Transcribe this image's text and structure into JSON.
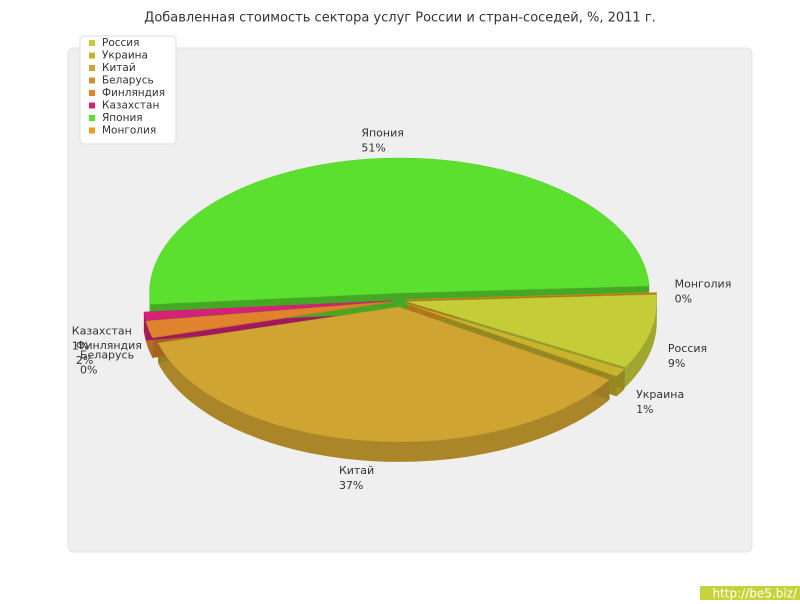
{
  "chart_data": {
    "type": "pie3d",
    "title": "Добавленная стоимость сектора услуг России и стран-соседей, %, 2011 г.",
    "categories": [
      "Россия",
      "Украина",
      "Китай",
      "Беларусь",
      "Финляндия",
      "Казахстан",
      "Япония",
      "Монголия"
    ],
    "values": [
      9,
      1,
      37,
      0,
      2,
      1,
      51,
      0
    ],
    "value_labels": [
      "9%",
      "1%",
      "37%",
      "0%",
      "2%",
      "1%",
      "51%",
      "0%"
    ],
    "colors": [
      "#c4cc38",
      "#c8b42c",
      "#cfa432",
      "#cf8f2a",
      "#e0822e",
      "#d8207a",
      "#5ce030",
      "#e8a020"
    ],
    "legend": "top-left"
  },
  "watermark": "http://be5.biz/"
}
